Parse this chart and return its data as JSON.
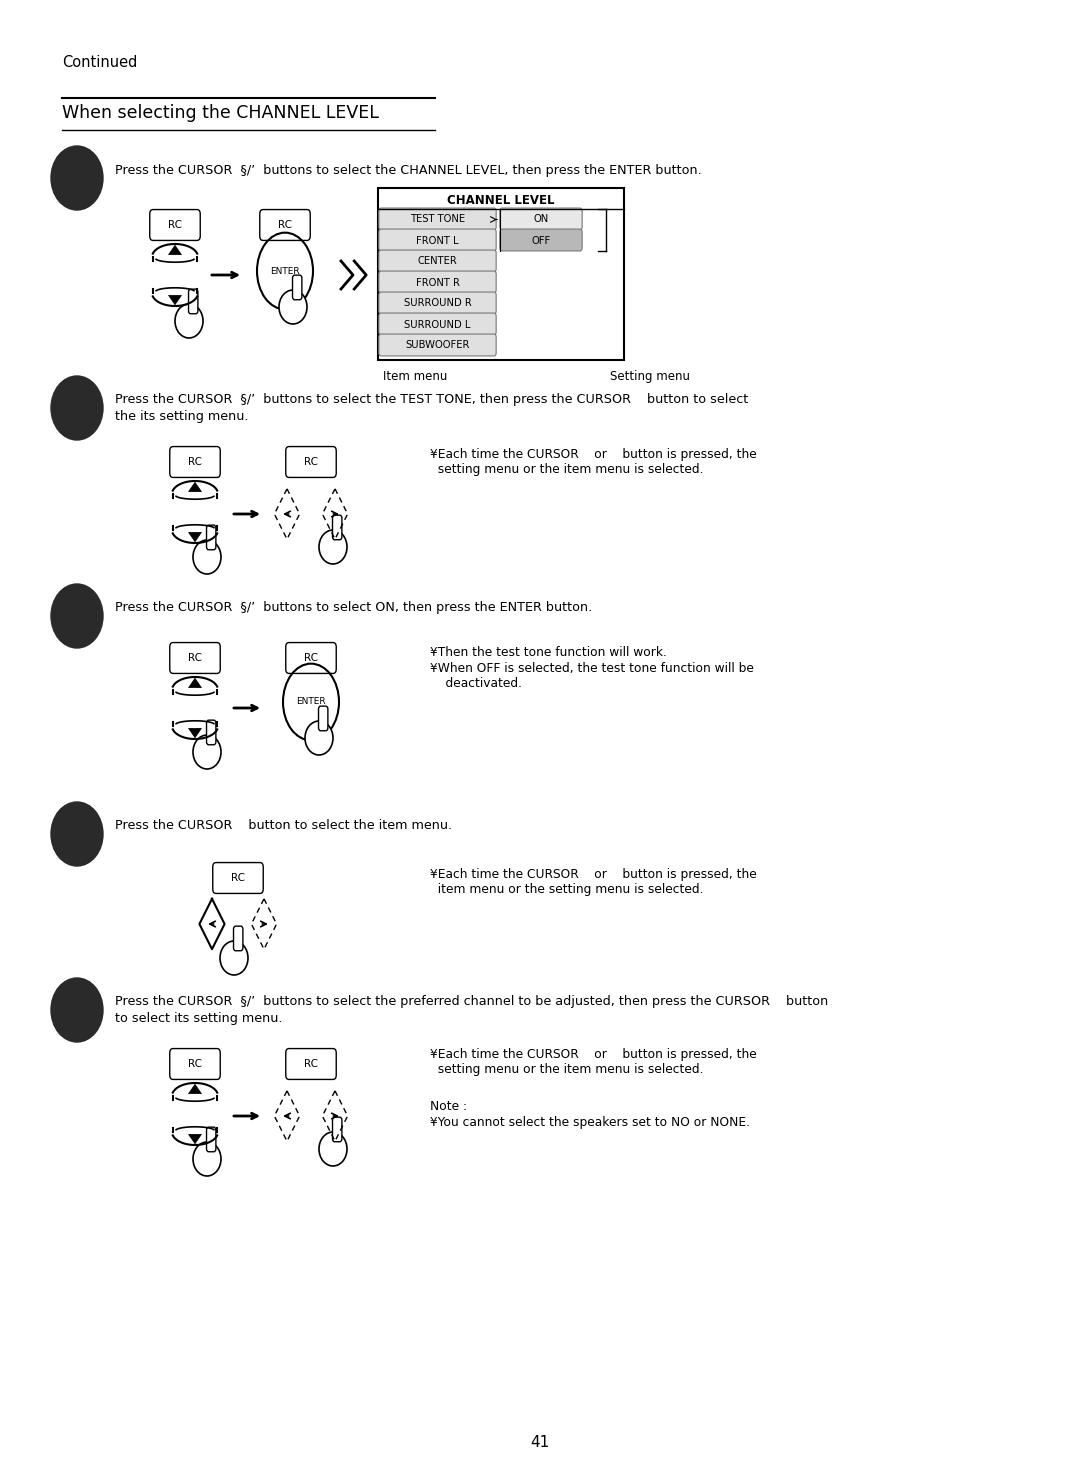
{
  "page_number": "41",
  "continued_text": "Continued",
  "section_title": "When selecting the CHANNEL LEVEL",
  "bg_color": "#ffffff",
  "step1_text": "Press the CURSOR  §/’  buttons to select the CHANNEL LEVEL, then press the ENTER button.",
  "step2_text1": "Press the CURSOR  §/’  buttons to select the TEST TONE, then press the CURSOR    button to select",
  "step2_text2": "the its setting menu.",
  "step2_note": "¥Each time the CURSOR    or    button is pressed, the\n  setting menu or the item menu is selected.",
  "step3_text": "Press the CURSOR  §/’  buttons to select ON, then press the ENTER button.",
  "step3_note1": "¥Then the test tone function will work.",
  "step3_note2": "¥When OFF is selected, the test tone function will be\n    deactivated.",
  "step4_text": "Press the CURSOR    button to select the item menu.",
  "step4_note": "¥Each time the CURSOR    or    button is pressed, the\n  item menu or the setting menu is selected.",
  "step5_text1": "Press the CURSOR  §/’  buttons to select the preferred channel to be adjusted, then press the CURSOR    button",
  "step5_text2": "to select its setting menu.",
  "step5_note": "¥Each time the CURSOR    or    button is pressed, the\n  setting menu or the item menu is selected.",
  "step5_note2_line1": "Note :",
  "step5_note2_line2": "¥You cannot select the speakers set to NO or NONE.",
  "channel_level_items": [
    "TEST TONE",
    "FRONT L",
    "CENTER",
    "FRONT R",
    "SURROUND R",
    "SURROUND L",
    "SUBWOOFER"
  ],
  "item_menu_label": "Item menu",
  "setting_menu_label": "Setting menu",
  "figw": 10.8,
  "figh": 14.79,
  "dpi": 100
}
